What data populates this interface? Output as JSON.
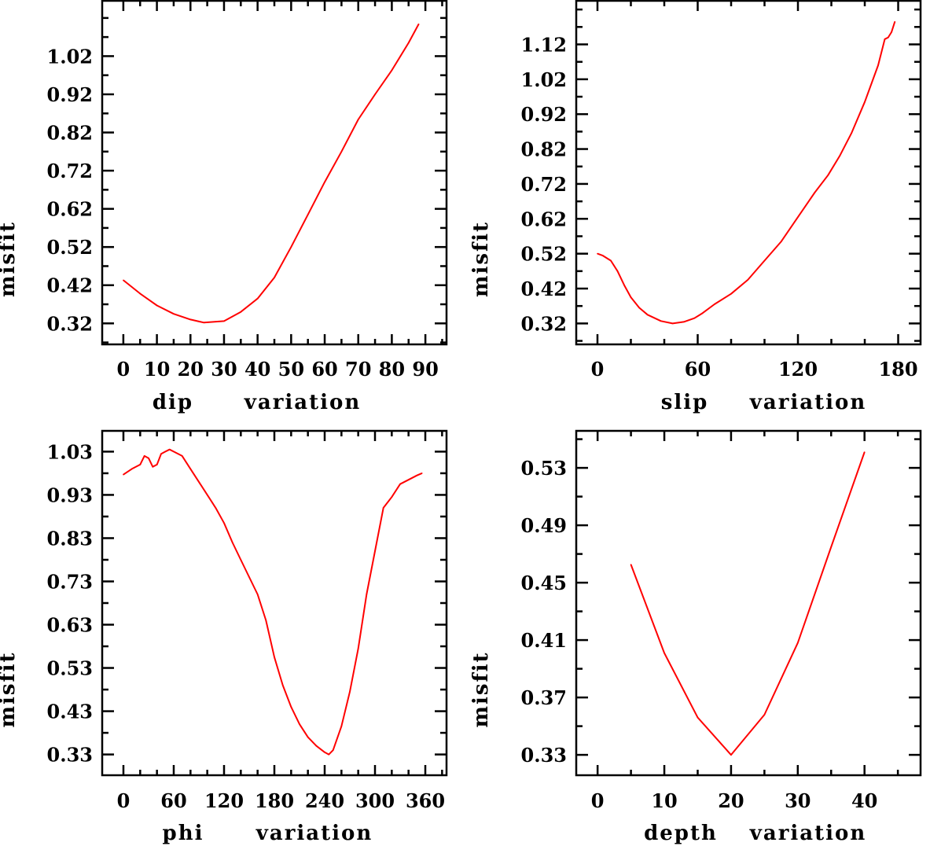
{
  "chart_data": [
    {
      "type": "line",
      "xlabel_words": [
        "dip",
        "variation"
      ],
      "ylabel": "misfit",
      "xlim": [
        -6.3,
        96.3
      ],
      "ylim": [
        0.265,
        1.165
      ],
      "xticks": [
        0,
        10,
        20,
        30,
        40,
        50,
        60,
        70,
        80,
        90
      ],
      "xminor": 5,
      "yticks": [
        0.32,
        0.42,
        0.52,
        0.62,
        0.72,
        0.82,
        0.92,
        1.02
      ],
      "ytick_labels": [
        "0.32",
        "0.42",
        "0.52",
        "0.62",
        "0.72",
        "0.82",
        "0.92",
        "1.02"
      ],
      "yminor": 0.05,
      "color": "#ff0000",
      "x": [
        0,
        5,
        10,
        15,
        20,
        24,
        30,
        35,
        40,
        45,
        50,
        55,
        60,
        65,
        70,
        75,
        80,
        85,
        88
      ],
      "y": [
        0.433,
        0.398,
        0.367,
        0.345,
        0.33,
        0.322,
        0.326,
        0.35,
        0.385,
        0.44,
        0.52,
        0.605,
        0.69,
        0.77,
        0.854,
        0.92,
        0.983,
        1.055,
        1.104
      ]
    },
    {
      "type": "line",
      "xlabel_words": [
        "slip",
        "variation"
      ],
      "ylabel": "misfit",
      "xlim": [
        -12.7,
        193.4
      ],
      "ylim": [
        0.26,
        1.245
      ],
      "xticks": [
        0,
        60,
        120,
        180
      ],
      "xminor": 20,
      "yticks": [
        0.32,
        0.42,
        0.52,
        0.62,
        0.72,
        0.82,
        0.92,
        1.02,
        1.12
      ],
      "ytick_labels": [
        "0.32",
        "0.42",
        "0.52",
        "0.62",
        "0.72",
        "0.82",
        "0.92",
        "1.02",
        "1.12"
      ],
      "yminor": 0.05,
      "color": "#ff0000",
      "x": [
        0,
        3,
        8,
        12,
        16,
        20,
        25,
        30,
        38,
        45,
        52,
        58,
        63,
        70,
        80,
        90,
        100,
        110,
        120,
        130,
        138,
        145,
        152,
        160,
        168,
        172,
        174,
        176,
        178
      ],
      "y": [
        0.52,
        0.515,
        0.5,
        0.47,
        0.43,
        0.395,
        0.365,
        0.345,
        0.327,
        0.32,
        0.325,
        0.335,
        0.35,
        0.375,
        0.405,
        0.445,
        0.5,
        0.555,
        0.625,
        0.695,
        0.745,
        0.8,
        0.865,
        0.955,
        1.06,
        1.135,
        1.14,
        1.155,
        1.185
      ]
    },
    {
      "type": "line",
      "xlabel_words": [
        "phi",
        "variation"
      ],
      "ylabel": "misfit",
      "xlim": [
        -25.3,
        385.3
      ],
      "ylim": [
        0.282,
        1.078
      ],
      "xticks": [
        0,
        60,
        120,
        180,
        240,
        300,
        360
      ],
      "xminor": 20,
      "yticks": [
        0.33,
        0.43,
        0.53,
        0.63,
        0.73,
        0.83,
        0.93,
        1.03
      ],
      "ytick_labels": [
        "0.33",
        "0.43",
        "0.53",
        "0.63",
        "0.73",
        "0.83",
        "0.93",
        "1.03"
      ],
      "yminor": 0.05,
      "color": "#ff0000",
      "x": [
        0,
        10,
        20,
        25,
        30,
        35,
        40,
        45,
        50,
        55,
        60,
        70,
        80,
        90,
        100,
        110,
        120,
        130,
        140,
        150,
        160,
        170,
        180,
        190,
        200,
        210,
        220,
        230,
        240,
        245,
        250,
        260,
        270,
        280,
        290,
        300,
        310,
        320,
        330,
        340,
        350,
        356
      ],
      "y": [
        0.977,
        0.99,
        1.0,
        1.02,
        1.015,
        0.995,
        1.0,
        1.025,
        1.03,
        1.035,
        1.03,
        1.02,
        0.99,
        0.96,
        0.93,
        0.9,
        0.865,
        0.82,
        0.78,
        0.74,
        0.7,
        0.64,
        0.555,
        0.49,
        0.44,
        0.4,
        0.37,
        0.35,
        0.335,
        0.33,
        0.34,
        0.395,
        0.475,
        0.575,
        0.7,
        0.8,
        0.9,
        0.925,
        0.955,
        0.965,
        0.975,
        0.98
      ]
    },
    {
      "type": "line",
      "xlabel_words": [
        "depth",
        "variation"
      ],
      "ylabel": "misfit",
      "xlim": [
        -3.2,
        48.4
      ],
      "ylim": [
        0.3158,
        0.5558
      ],
      "xticks": [
        0,
        10,
        20,
        30,
        40
      ],
      "xminor": 5,
      "yticks": [
        0.33,
        0.37,
        0.41,
        0.45,
        0.49,
        0.53
      ],
      "ytick_labels": [
        "0.33",
        "0.37",
        "0.41",
        "0.45",
        "0.49",
        "0.53"
      ],
      "yminor": 0.02,
      "color": "#ff0000",
      "x": [
        5,
        10,
        15,
        20,
        25,
        30,
        35,
        40
      ],
      "y": [
        0.4626,
        0.401,
        0.356,
        0.33,
        0.358,
        0.408,
        0.475,
        0.541
      ]
    }
  ]
}
